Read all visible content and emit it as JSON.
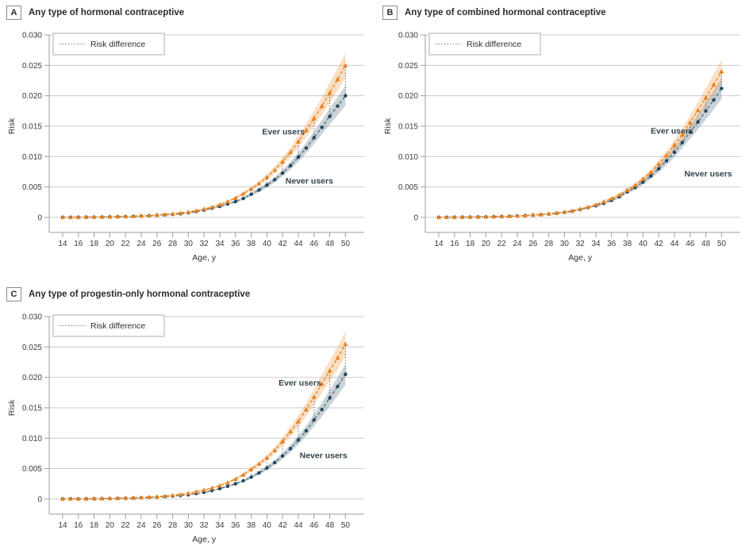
{
  "figure": {
    "background": "#ffffff",
    "colors": {
      "ever_line": "#E8821E",
      "ever_band": "rgba(238,150,60,0.30)",
      "never_line": "#4E6E7E",
      "never_marker": "#24445A",
      "never_band": "rgba(78,110,126,0.30)",
      "gridline": "#CCCCCC",
      "axis_spine": "#9C9C9C",
      "risk_difference_line": "#444444",
      "legend_border": "#AFAFAF",
      "text": "#333333"
    }
  },
  "chart_data": [
    {
      "id": "A",
      "panel_label": "A",
      "title": "Any type of hormonal contraceptive",
      "type": "line",
      "xlabel": "Age, y",
      "ylabel": "Risk",
      "legend_label": "Risk difference",
      "legend_position": "top-left",
      "grid": true,
      "x_ticks": [
        14,
        16,
        18,
        20,
        22,
        24,
        26,
        28,
        30,
        32,
        34,
        36,
        38,
        40,
        42,
        44,
        46,
        48,
        50
      ],
      "y_ticks": [
        0,
        0.005,
        0.01,
        0.015,
        0.02,
        0.025,
        0.03
      ],
      "y_tick_labels": [
        "0",
        "0.005",
        "0.010",
        "0.015",
        "0.020",
        "0.025",
        "0.030"
      ],
      "x_range": [
        14,
        50
      ],
      "y_range": [
        0,
        0.03
      ],
      "ages": [
        14,
        15,
        16,
        17,
        18,
        19,
        20,
        21,
        22,
        23,
        24,
        25,
        26,
        27,
        28,
        29,
        30,
        31,
        32,
        33,
        34,
        35,
        36,
        37,
        38,
        39,
        40,
        41,
        42,
        43,
        44,
        45,
        46,
        47,
        48,
        49,
        50
      ],
      "series": [
        {
          "name": "Never users",
          "marker": "circle",
          "values": [
            2e-05,
            3e-05,
            4e-05,
            5e-05,
            6e-05,
            7e-05,
            9e-05,
            0.00011,
            0.00014,
            0.00018,
            0.00022,
            0.00028,
            0.00035,
            0.00042,
            0.0005,
            0.0006,
            0.00075,
            0.00095,
            0.0012,
            0.0015,
            0.0018,
            0.0022,
            0.0026,
            0.0031,
            0.0038,
            0.0045,
            0.0053,
            0.0062,
            0.0073,
            0.0085,
            0.0099,
            0.0114,
            0.0131,
            0.0148,
            0.0166,
            0.0183,
            0.02
          ]
        },
        {
          "name": "Ever users",
          "marker": "triangle",
          "values": [
            2e-05,
            3e-05,
            4e-05,
            5e-05,
            7e-05,
            8e-05,
            0.0001,
            0.00013,
            0.00016,
            0.0002,
            0.00025,
            0.0003,
            0.0004,
            0.0005,
            0.0006,
            0.00073,
            0.0009,
            0.0011,
            0.0014,
            0.0017,
            0.0021,
            0.0026,
            0.0032,
            0.0039,
            0.0047,
            0.0056,
            0.0066,
            0.0078,
            0.0092,
            0.0107,
            0.0125,
            0.0143,
            0.0163,
            0.0183,
            0.0205,
            0.0227,
            0.025
          ]
        }
      ],
      "labels": {
        "ever": {
          "text": "Ever users",
          "age": 42.1,
          "risk": 0.0141
        },
        "never": {
          "text": "Never users",
          "age": 45.4,
          "risk": 0.006
        }
      }
    },
    {
      "id": "B",
      "panel_label": "B",
      "title": "Any type of combined hormonal contraceptive",
      "type": "line",
      "xlabel": "Age, y",
      "ylabel": "Risk",
      "legend_label": "Risk difference",
      "legend_position": "top-left",
      "grid": true,
      "x_ticks": [
        14,
        16,
        18,
        20,
        22,
        24,
        26,
        28,
        30,
        32,
        34,
        36,
        38,
        40,
        42,
        44,
        46,
        48,
        50
      ],
      "y_ticks": [
        0,
        0.005,
        0.01,
        0.015,
        0.02,
        0.025,
        0.03
      ],
      "y_tick_labels": [
        "0",
        "0.005",
        "0.010",
        "0.015",
        "0.020",
        "0.025",
        "0.030"
      ],
      "x_range": [
        14,
        50
      ],
      "y_range": [
        0,
        0.03
      ],
      "ages": [
        14,
        15,
        16,
        17,
        18,
        19,
        20,
        21,
        22,
        23,
        24,
        25,
        26,
        27,
        28,
        29,
        30,
        31,
        32,
        33,
        34,
        35,
        36,
        37,
        38,
        39,
        40,
        41,
        42,
        43,
        44,
        45,
        46,
        47,
        48,
        49,
        50
      ],
      "series": [
        {
          "name": "Never users",
          "marker": "circle",
          "values": [
            2e-05,
            3e-05,
            4e-05,
            5e-05,
            6e-05,
            8e-05,
            9e-05,
            0.00012,
            0.00015,
            0.00019,
            0.00023,
            0.0003,
            0.00037,
            0.00045,
            0.00055,
            0.00067,
            0.00082,
            0.001,
            0.0013,
            0.0016,
            0.0019,
            0.0023,
            0.0028,
            0.0034,
            0.0042,
            0.0049,
            0.0058,
            0.0068,
            0.008,
            0.0093,
            0.0107,
            0.0123,
            0.014,
            0.0157,
            0.0175,
            0.0193,
            0.0212
          ]
        },
        {
          "name": "Ever users",
          "marker": "triangle",
          "values": [
            2e-05,
            3e-05,
            4e-05,
            5e-05,
            7e-05,
            8e-05,
            0.0001,
            0.00013,
            0.00016,
            0.0002,
            0.00025,
            0.0003,
            0.0004,
            0.0005,
            0.0006,
            0.00073,
            0.0009,
            0.0011,
            0.0014,
            0.0017,
            0.0021,
            0.0026,
            0.0031,
            0.0037,
            0.0045,
            0.0053,
            0.0063,
            0.0074,
            0.0088,
            0.0102,
            0.0119,
            0.0136,
            0.0156,
            0.0176,
            0.0197,
            0.0218,
            0.024
          ]
        }
      ],
      "labels": {
        "ever": {
          "text": "Ever users",
          "age": 43.7,
          "risk": 0.0142
        },
        "never": {
          "text": "Never users",
          "age": 48.3,
          "risk": 0.0072
        }
      }
    },
    {
      "id": "C",
      "panel_label": "C",
      "title": "Any type of progestin-only hormonal contraceptive",
      "type": "line",
      "xlabel": "Age, y",
      "ylabel": "Risk",
      "legend_label": "Risk difference",
      "legend_position": "top-left",
      "grid": true,
      "x_ticks": [
        14,
        16,
        18,
        20,
        22,
        24,
        26,
        28,
        30,
        32,
        34,
        36,
        38,
        40,
        42,
        44,
        46,
        48,
        50
      ],
      "y_ticks": [
        0,
        0.005,
        0.01,
        0.015,
        0.02,
        0.025,
        0.03
      ],
      "y_tick_labels": [
        "0",
        "0.005",
        "0.010",
        "0.015",
        "0.020",
        "0.025",
        "0.030"
      ],
      "x_range": [
        14,
        50
      ],
      "y_range": [
        0,
        0.03
      ],
      "ages": [
        14,
        15,
        16,
        17,
        18,
        19,
        20,
        21,
        22,
        23,
        24,
        25,
        26,
        27,
        28,
        29,
        30,
        31,
        32,
        33,
        34,
        35,
        36,
        37,
        38,
        39,
        40,
        41,
        42,
        43,
        44,
        45,
        46,
        47,
        48,
        49,
        50
      ],
      "series": [
        {
          "name": "Never users",
          "marker": "circle",
          "values": [
            2e-05,
            2.5e-05,
            3e-05,
            4e-05,
            5e-05,
            6.5e-05,
            8e-05,
            0.0001,
            0.00013,
            0.00016,
            0.0002,
            0.00025,
            0.00032,
            0.0004,
            0.00048,
            0.00058,
            0.0007,
            0.0009,
            0.0011,
            0.0014,
            0.0017,
            0.0021,
            0.0025,
            0.003,
            0.0036,
            0.0043,
            0.0051,
            0.006,
            0.0071,
            0.0083,
            0.0097,
            0.0112,
            0.013,
            0.0147,
            0.0166,
            0.0185,
            0.0205
          ]
        },
        {
          "name": "Ever users",
          "marker": "triangle",
          "values": [
            2e-05,
            3e-05,
            4e-05,
            5e-05,
            7e-05,
            8e-05,
            0.0001,
            0.00013,
            0.00016,
            0.0002,
            0.00026,
            0.00032,
            0.0004,
            0.0005,
            0.00062,
            0.00077,
            0.00095,
            0.0012,
            0.0015,
            0.0018,
            0.0022,
            0.0027,
            0.0033,
            0.004,
            0.0049,
            0.0058,
            0.0068,
            0.008,
            0.0095,
            0.0111,
            0.0128,
            0.0147,
            0.0168,
            0.0189,
            0.0211,
            0.0232,
            0.0255
          ]
        }
      ],
      "labels": {
        "ever": {
          "text": "Ever users",
          "age": 44.2,
          "risk": 0.0191
        },
        "never": {
          "text": "Never users",
          "age": 47.2,
          "risk": 0.0072
        }
      }
    }
  ]
}
